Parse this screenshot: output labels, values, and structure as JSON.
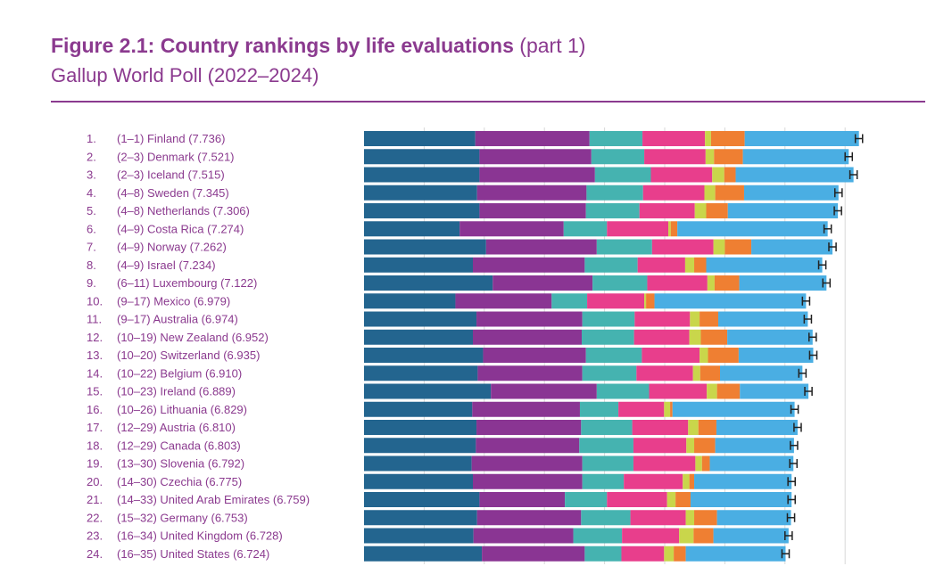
{
  "header": {
    "title_bold": "Figure 2.1: Country rankings by life evaluations",
    "title_suffix": "(part 1)",
    "subtitle": "Gallup World Poll (2022–2024)"
  },
  "colors": {
    "segments": [
      "#23658f",
      "#8a3593",
      "#45b3b0",
      "#e83e8c",
      "#c9d64b",
      "#ef7f32",
      "#4aaee3"
    ],
    "label": "#8b3a8f",
    "errorbar": "#222222",
    "gridline": "#d8d8d8"
  },
  "chart_data": {
    "type": "bar",
    "orientation": "horizontal",
    "stacked": true,
    "x_range": [
      0,
      8.3
    ],
    "grid": true,
    "error_bars": true,
    "categories": [
      "1.|(1–1) Finland (7.736)",
      "2.|(2–3) Denmark (7.521)",
      "3.|(2–3) Iceland (7.515)",
      "4.|(4–8) Sweden (7.345)",
      "5.|(4–8) Netherlands (7.306)",
      "6.|(4–9) Costa Rica (7.274)",
      "7.|(4–9) Norway (7.262)",
      "8.|(4–9) Israel (7.234)",
      "9.|(6–11) Luxembourg (7.122)",
      "10.|(9–17) Mexico (6.979)",
      "11.|(9–17) Australia (6.974)",
      "12.|(10–19) New Zealand (6.952)",
      "13.|(10–20) Switzerland (6.935)",
      "14.|(10–22) Belgium (6.910)",
      "15.|(10–23) Ireland (6.889)",
      "16.|(10–26) Lithuania (6.829)",
      "17.|(12–29) Austria (6.810)",
      "18.|(12–29) Canada (6.803)",
      "19.|(13–30) Slovenia (6.792)",
      "20.|(14–30) Czechia (6.775)",
      "21.|(14–33) United Arab Emirates (6.759)",
      "22.|(15–32) Germany (6.753)",
      "23.|(16–34) United Kingdom (6.728)",
      "24.|(16–35) United States (6.724)"
    ],
    "segment_values": [
      [
        1.85,
        1.9,
        0.88,
        1.04,
        0.1,
        0.56,
        1.9
      ],
      [
        1.92,
        1.86,
        0.88,
        1.02,
        0.14,
        0.48,
        1.76
      ],
      [
        1.92,
        1.92,
        0.93,
        1.02,
        0.2,
        0.19,
        1.96
      ],
      [
        1.88,
        1.82,
        0.94,
        1.02,
        0.18,
        0.48,
        1.57
      ],
      [
        1.92,
        1.77,
        0.89,
        0.92,
        0.19,
        0.36,
        1.83
      ],
      [
        1.59,
        1.73,
        0.72,
        1.02,
        0.04,
        0.11,
        2.5
      ],
      [
        2.03,
        1.84,
        0.92,
        1.02,
        0.19,
        0.44,
        1.35
      ],
      [
        1.81,
        1.86,
        0.88,
        0.79,
        0.15,
        0.2,
        1.93
      ],
      [
        2.14,
        1.66,
        0.91,
        1.0,
        0.12,
        0.41,
        1.45
      ],
      [
        1.52,
        1.6,
        0.59,
        0.95,
        0.03,
        0.14,
        2.52
      ],
      [
        1.87,
        1.76,
        0.87,
        0.92,
        0.16,
        0.31,
        1.49
      ],
      [
        1.81,
        1.81,
        0.87,
        0.92,
        0.19,
        0.44,
        1.42
      ],
      [
        1.98,
        1.71,
        0.93,
        0.96,
        0.14,
        0.51,
        1.24
      ],
      [
        1.89,
        1.74,
        0.9,
        0.94,
        0.12,
        0.33,
        1.37
      ],
      [
        2.11,
        1.76,
        0.87,
        0.96,
        0.17,
        0.38,
        1.14
      ],
      [
        1.8,
        1.79,
        0.64,
        0.76,
        0.1,
        0.04,
        2.03
      ],
      [
        1.87,
        1.74,
        0.85,
        0.93,
        0.17,
        0.3,
        1.35
      ],
      [
        1.86,
        1.72,
        0.9,
        0.88,
        0.13,
        0.35,
        1.31
      ],
      [
        1.79,
        1.84,
        0.85,
        1.03,
        0.11,
        0.13,
        1.39
      ],
      [
        1.81,
        1.82,
        0.69,
        0.98,
        0.11,
        0.08,
        1.62
      ],
      [
        1.92,
        1.42,
        0.7,
        1.0,
        0.14,
        0.25,
        1.68
      ],
      [
        1.88,
        1.73,
        0.82,
        0.92,
        0.14,
        0.38,
        1.23
      ],
      [
        1.82,
        1.66,
        0.81,
        0.95,
        0.24,
        0.33,
        1.25
      ],
      [
        1.96,
        1.71,
        0.61,
        0.71,
        0.16,
        0.2,
        1.66
      ]
    ],
    "error_half_width": 0.06
  }
}
